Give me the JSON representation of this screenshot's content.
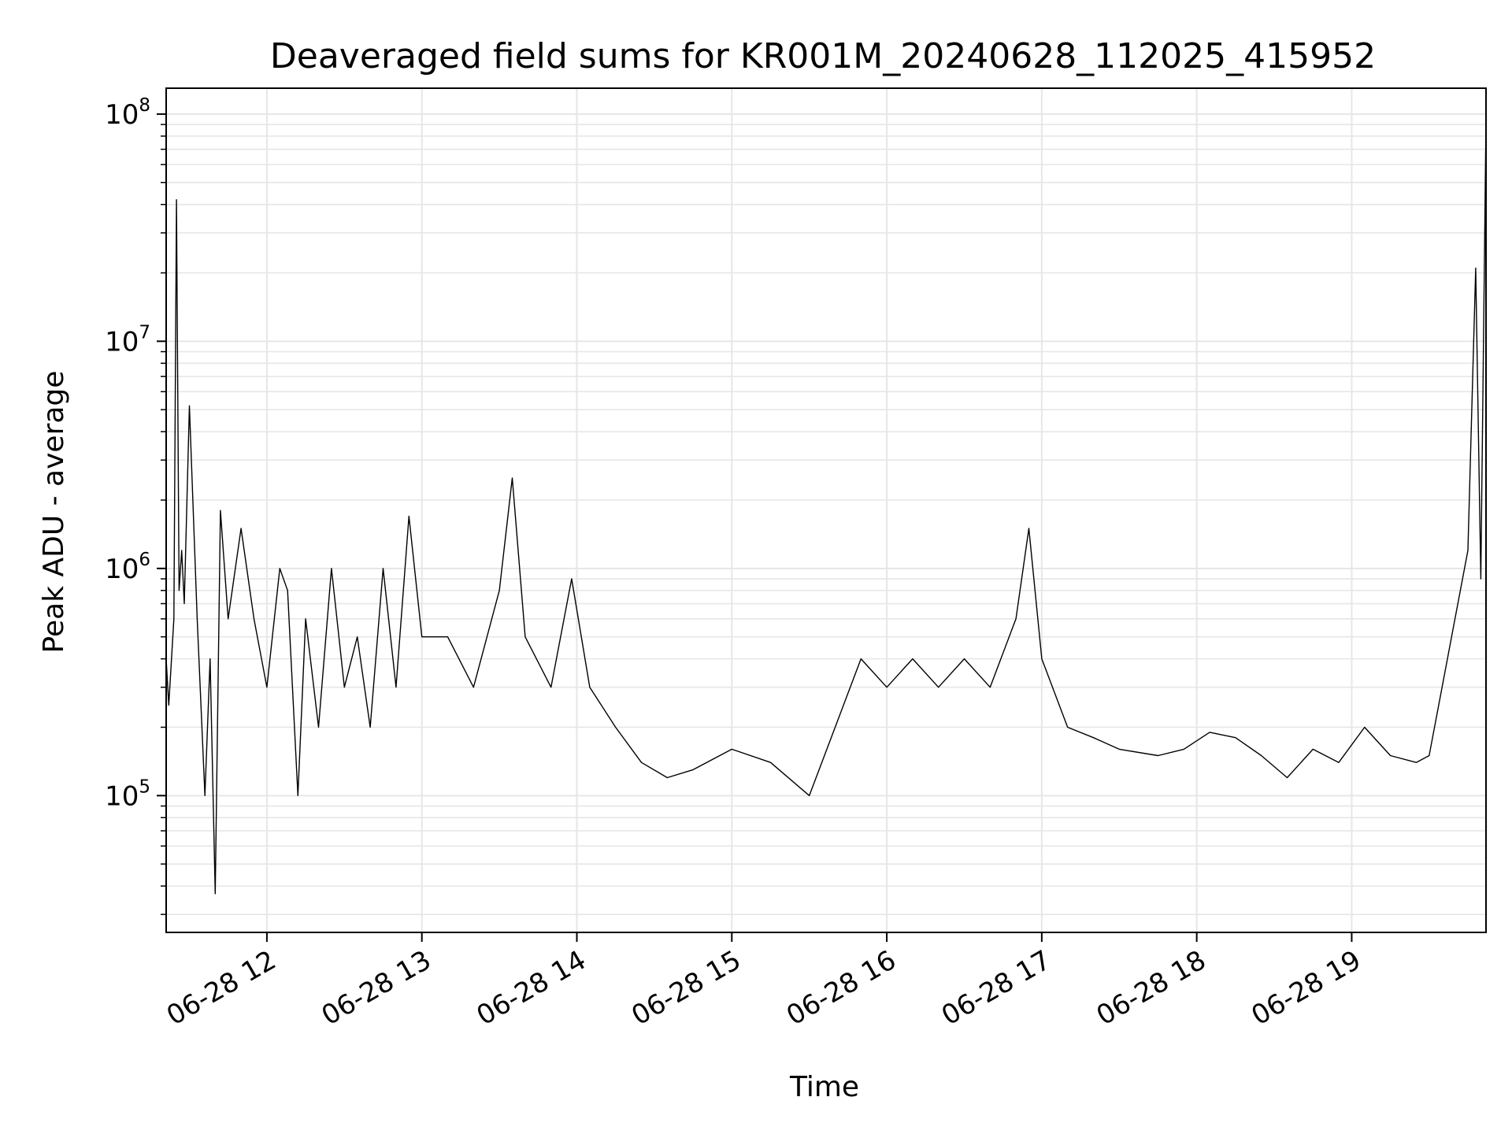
{
  "chart_data": {
    "type": "line",
    "title": "Deaveraged field sums for KR001M_20240628_112025_415952",
    "xlabel": "Time",
    "ylabel": "Peak ADU - average",
    "yscale": "log",
    "ylim": [
      25000,
      130000000
    ],
    "xlim": [
      "2024-06-28 11:21:00",
      "2024-06-28 19:52:00"
    ],
    "x_ticks": [
      "06-28 12",
      "06-28 13",
      "06-28 14",
      "06-28 15",
      "06-28 16",
      "06-28 17",
      "06-28 18",
      "06-28 19"
    ],
    "x_tick_times": [
      "2024-06-28 12:00",
      "2024-06-28 13:00",
      "2024-06-28 14:00",
      "2024-06-28 15:00",
      "2024-06-28 16:00",
      "2024-06-28 17:00",
      "2024-06-28 18:00",
      "2024-06-28 19:00"
    ],
    "y_ticks": [
      {
        "value": 100000,
        "base": "10",
        "exp": "5"
      },
      {
        "value": 1000000,
        "base": "10",
        "exp": "6"
      },
      {
        "value": 10000000,
        "base": "10",
        "exp": "7"
      },
      {
        "value": 100000000,
        "base": "10",
        "exp": "8"
      }
    ],
    "grid": true,
    "line_color": "#000000",
    "grid_color": "#e6e6e6",
    "series": [
      {
        "x": [
          "2024-06-28 11:21",
          "2024-06-28 11:22",
          "2024-06-28 11:24",
          "2024-06-28 11:25",
          "2024-06-28 11:26",
          "2024-06-28 11:27",
          "2024-06-28 11:28",
          "2024-06-28 11:30",
          "2024-06-28 11:33",
          "2024-06-28 11:36",
          "2024-06-28 11:38",
          "2024-06-28 11:40",
          "2024-06-28 11:42",
          "2024-06-28 11:45",
          "2024-06-28 11:50",
          "2024-06-28 11:55",
          "2024-06-28 12:00",
          "2024-06-28 12:05",
          "2024-06-28 12:08",
          "2024-06-28 12:12",
          "2024-06-28 12:15",
          "2024-06-28 12:20",
          "2024-06-28 12:25",
          "2024-06-28 12:30",
          "2024-06-28 12:35",
          "2024-06-28 12:40",
          "2024-06-28 12:45",
          "2024-06-28 12:50",
          "2024-06-28 12:55",
          "2024-06-28 13:00",
          "2024-06-28 13:10",
          "2024-06-28 13:20",
          "2024-06-28 13:30",
          "2024-06-28 13:35",
          "2024-06-28 13:40",
          "2024-06-28 13:50",
          "2024-06-28 13:58",
          "2024-06-28 14:05",
          "2024-06-28 14:15",
          "2024-06-28 14:25",
          "2024-06-28 14:35",
          "2024-06-28 14:45",
          "2024-06-28 15:00",
          "2024-06-28 15:15",
          "2024-06-28 15:30",
          "2024-06-28 15:40",
          "2024-06-28 15:50",
          "2024-06-28 16:00",
          "2024-06-28 16:10",
          "2024-06-28 16:20",
          "2024-06-28 16:30",
          "2024-06-28 16:40",
          "2024-06-28 16:50",
          "2024-06-28 16:55",
          "2024-06-28 17:00",
          "2024-06-28 17:10",
          "2024-06-28 17:20",
          "2024-06-28 17:30",
          "2024-06-28 17:45",
          "2024-06-28 17:55",
          "2024-06-28 18:05",
          "2024-06-28 18:15",
          "2024-06-28 18:25",
          "2024-06-28 18:35",
          "2024-06-28 18:45",
          "2024-06-28 18:55",
          "2024-06-28 19:05",
          "2024-06-28 19:15",
          "2024-06-28 19:25",
          "2024-06-28 19:30",
          "2024-06-28 19:35",
          "2024-06-28 19:40",
          "2024-06-28 19:45",
          "2024-06-28 19:48",
          "2024-06-28 19:50",
          "2024-06-28 19:52"
        ],
        "y": [
          400000,
          250000,
          600000,
          42000000,
          800000,
          1200000,
          700000,
          5200000,
          600000,
          100000,
          400000,
          37000,
          1800000,
          600000,
          1500000,
          600000,
          300000,
          1000000,
          800000,
          100000,
          600000,
          200000,
          1000000,
          300000,
          500000,
          200000,
          1000000,
          300000,
          1700000,
          500000,
          500000,
          300000,
          800000,
          2500000,
          500000,
          300000,
          900000,
          300000,
          200000,
          140000,
          120000,
          130000,
          160000,
          140000,
          100000,
          200000,
          400000,
          300000,
          400000,
          300000,
          400000,
          300000,
          600000,
          1500000,
          400000,
          200000,
          180000,
          160000,
          150000,
          160000,
          190000,
          180000,
          150000,
          120000,
          160000,
          140000,
          200000,
          150000,
          140000,
          150000,
          300000,
          600000,
          1200000,
          21000000,
          900000,
          95000000
        ]
      }
    ]
  }
}
